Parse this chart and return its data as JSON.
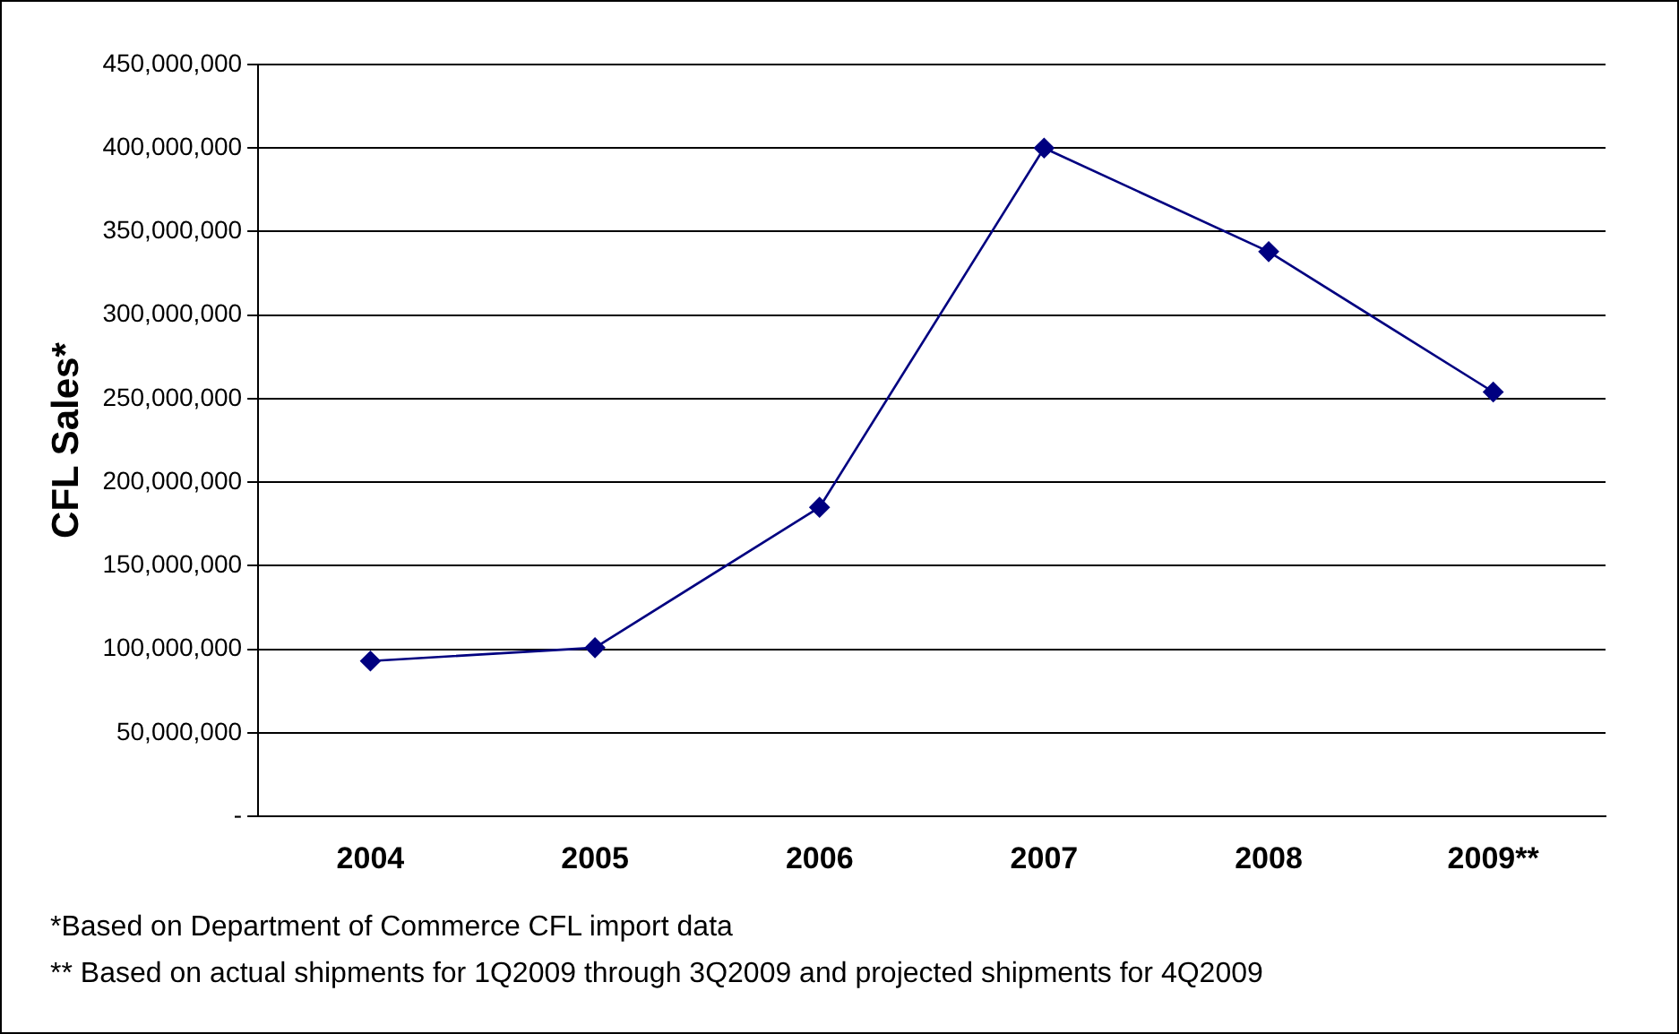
{
  "chart_data": {
    "type": "line",
    "ylabel": "CFL Sales*",
    "categories": [
      "2004",
      "2005",
      "2006",
      "2007",
      "2008",
      "2009**"
    ],
    "series": [
      {
        "color": "#000080",
        "values": [
          93000000,
          101000000,
          185000000,
          400000000,
          338000000,
          254000000
        ]
      }
    ],
    "ylim": [
      0,
      450000000
    ],
    "yticks": [
      {
        "value": 0,
        "label": "-"
      },
      {
        "value": 50000000,
        "label": "50,000,000"
      },
      {
        "value": 100000000,
        "label": "100,000,000"
      },
      {
        "value": 150000000,
        "label": "150,000,000"
      },
      {
        "value": 200000000,
        "label": "200,000,000"
      },
      {
        "value": 250000000,
        "label": "250,000,000"
      },
      {
        "value": 300000000,
        "label": "300,000,000"
      },
      {
        "value": 350000000,
        "label": "350,000,000"
      },
      {
        "value": 400000000,
        "label": "400,000,000"
      },
      {
        "value": 450000000,
        "label": "450,000,000"
      }
    ],
    "grid": "y",
    "legend": false,
    "marker": "diamond",
    "line_style": "solid",
    "annotations": [
      "*Based on Department of Commerce CFL import data",
      "** Based on actual shipments for 1Q2009 through 3Q2009 and projected shipments for 4Q2009"
    ]
  }
}
